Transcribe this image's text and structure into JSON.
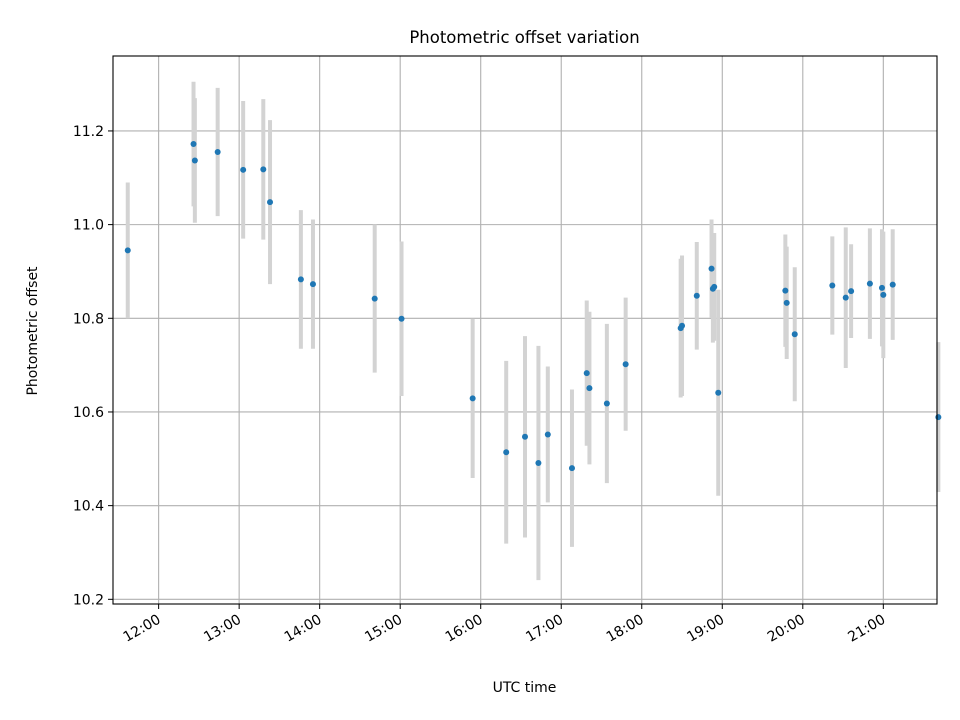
{
  "chart_data": {
    "type": "scatter",
    "title": "Photometric offset variation",
    "xlabel": "UTC time",
    "ylabel": "Photometric offset",
    "grid": true,
    "xlim": [
      "11:26",
      "21:40"
    ],
    "ylim": [
      10.19,
      11.36
    ],
    "x_ticks": [
      "12:00",
      "13:00",
      "14:00",
      "15:00",
      "16:00",
      "17:00",
      "18:00",
      "19:00",
      "20:00",
      "21:00"
    ],
    "y_ticks": [
      "10.2",
      "10.4",
      "10.6",
      "10.8",
      "11.0",
      "11.2"
    ],
    "colors": {
      "points": "#1f77b4",
      "errorbars": "#d3d3d3",
      "grid": "#b0b0b0"
    },
    "series": [
      {
        "points": [
          {
            "x": "11:37",
            "y": 10.945,
            "err": 0.145
          },
          {
            "x": "12:26",
            "y": 11.172,
            "err": 0.133
          },
          {
            "x": "12:27",
            "y": 11.137,
            "err": 0.133
          },
          {
            "x": "12:44",
            "y": 11.155,
            "err": 0.137
          },
          {
            "x": "13:03",
            "y": 11.117,
            "err": 0.147
          },
          {
            "x": "13:18",
            "y": 11.118,
            "err": 0.15
          },
          {
            "x": "13:23",
            "y": 11.048,
            "err": 0.175
          },
          {
            "x": "13:46",
            "y": 10.883,
            "err": 0.148
          },
          {
            "x": "13:55",
            "y": 10.873,
            "err": 0.138
          },
          {
            "x": "14:41",
            "y": 10.842,
            "err": 0.158
          },
          {
            "x": "15:01",
            "y": 10.799,
            "err": 0.165
          },
          {
            "x": "15:54",
            "y": 10.629,
            "err": 0.17
          },
          {
            "x": "16:19",
            "y": 10.514,
            "err": 0.195
          },
          {
            "x": "16:33",
            "y": 10.547,
            "err": 0.215
          },
          {
            "x": "16:43",
            "y": 10.491,
            "err": 0.25
          },
          {
            "x": "16:50",
            "y": 10.552,
            "err": 0.145
          },
          {
            "x": "17:08",
            "y": 10.48,
            "err": 0.168
          },
          {
            "x": "17:19",
            "y": 10.683,
            "err": 0.155
          },
          {
            "x": "17:21",
            "y": 10.651,
            "err": 0.163
          },
          {
            "x": "17:34",
            "y": 10.618,
            "err": 0.17
          },
          {
            "x": "17:48",
            "y": 10.702,
            "err": 0.142
          },
          {
            "x": "18:29",
            "y": 10.779,
            "err": 0.148
          },
          {
            "x": "18:30",
            "y": 10.784,
            "err": 0.15
          },
          {
            "x": "18:41",
            "y": 10.848,
            "err": 0.115
          },
          {
            "x": "18:52",
            "y": 10.906,
            "err": 0.105
          },
          {
            "x": "18:53",
            "y": 10.863,
            "err": 0.115
          },
          {
            "x": "18:54",
            "y": 10.867,
            "err": 0.115
          },
          {
            "x": "18:57",
            "y": 10.641,
            "err": 0.22
          },
          {
            "x": "19:47",
            "y": 10.859,
            "err": 0.12
          },
          {
            "x": "19:48",
            "y": 10.833,
            "err": 0.12
          },
          {
            "x": "19:54",
            "y": 10.766,
            "err": 0.143
          },
          {
            "x": "20:22",
            "y": 10.87,
            "err": 0.105
          },
          {
            "x": "20:32",
            "y": 10.844,
            "err": 0.15
          },
          {
            "x": "20:36",
            "y": 10.858,
            "err": 0.1
          },
          {
            "x": "20:50",
            "y": 10.874,
            "err": 0.118
          },
          {
            "x": "20:59",
            "y": 10.865,
            "err": 0.125
          },
          {
            "x": "21:00",
            "y": 10.85,
            "err": 0.135
          },
          {
            "x": "21:07",
            "y": 10.872,
            "err": 0.118
          },
          {
            "x": "21:41",
            "y": 10.589,
            "err": 0.16
          }
        ]
      }
    ]
  }
}
